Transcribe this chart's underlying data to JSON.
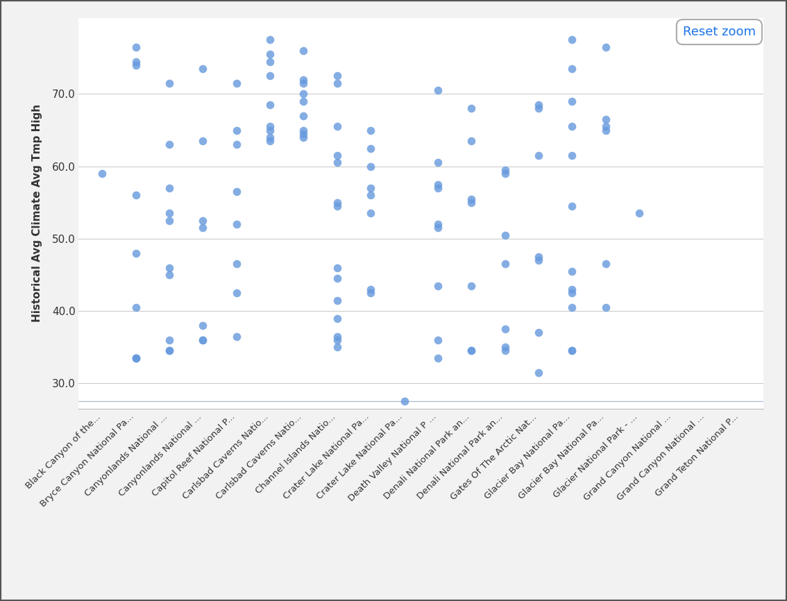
{
  "title": "",
  "ylabel": "Historical Avg Climate Avg Tmp High",
  "xlabel": "",
  "background_color": "#f0f0f0",
  "plot_bg_color": "#ffffff",
  "point_color": "#6699dd",
  "point_size": 70,
  "point_alpha": 0.8,
  "ylim": [
    26.5,
    80.5
  ],
  "yticks": [
    30.0,
    40.0,
    50.0,
    60.0,
    70.0
  ],
  "categories": [
    "Black Canyon of the...",
    "Bryce Canyon National Pa...",
    "Canyonlands National ...",
    "Canyonlands National ...",
    "Capitol Reef National P...",
    "Carlsbad Caverns Natio...",
    "Carlsbad Caverns Natio...",
    "Channel Islands Natio...",
    "Crater Lake National Pa...",
    "Crater Lake National Pa...",
    "Death Valley National P ...",
    "Denali National Park an...",
    "Denali National Park an...",
    "Gates Of The Arctic Nat...",
    "Glacier Bay National Pa...",
    "Glacier Bay National Pa...",
    "Glacier National Park - ...",
    "Grand Canyon National ...",
    "Grand Canyon National ...",
    "Grand Teton National P..."
  ],
  "data_points": [
    [
      0,
      59.0
    ],
    [
      1,
      76.5
    ],
    [
      1,
      74.5
    ],
    [
      1,
      74.0
    ],
    [
      1,
      56.0
    ],
    [
      1,
      48.0
    ],
    [
      1,
      40.5
    ],
    [
      1,
      33.5
    ],
    [
      1,
      33.5
    ],
    [
      1,
      33.5
    ],
    [
      2,
      71.5
    ],
    [
      2,
      63.0
    ],
    [
      2,
      57.0
    ],
    [
      2,
      46.0
    ],
    [
      2,
      45.0
    ],
    [
      2,
      36.0
    ],
    [
      2,
      53.5
    ],
    [
      2,
      52.5
    ],
    [
      2,
      34.5
    ],
    [
      2,
      34.5
    ],
    [
      3,
      73.5
    ],
    [
      3,
      63.5
    ],
    [
      3,
      52.5
    ],
    [
      3,
      51.5
    ],
    [
      3,
      38.0
    ],
    [
      3,
      36.0
    ],
    [
      3,
      36.0
    ],
    [
      4,
      71.5
    ],
    [
      4,
      65.0
    ],
    [
      4,
      63.0
    ],
    [
      4,
      56.5
    ],
    [
      4,
      52.0
    ],
    [
      4,
      46.5
    ],
    [
      4,
      42.5
    ],
    [
      4,
      36.5
    ],
    [
      5,
      77.5
    ],
    [
      5,
      75.5
    ],
    [
      5,
      74.5
    ],
    [
      5,
      72.5
    ],
    [
      5,
      68.5
    ],
    [
      5,
      65.5
    ],
    [
      5,
      65.0
    ],
    [
      5,
      64.0
    ],
    [
      5,
      63.5
    ],
    [
      6,
      76.0
    ],
    [
      6,
      72.0
    ],
    [
      6,
      71.5
    ],
    [
      6,
      70.0
    ],
    [
      6,
      69.0
    ],
    [
      6,
      67.0
    ],
    [
      6,
      65.0
    ],
    [
      6,
      64.5
    ],
    [
      6,
      64.0
    ],
    [
      7,
      72.5
    ],
    [
      7,
      71.5
    ],
    [
      7,
      65.5
    ],
    [
      7,
      61.5
    ],
    [
      7,
      60.5
    ],
    [
      7,
      55.0
    ],
    [
      7,
      54.5
    ],
    [
      7,
      46.0
    ],
    [
      7,
      44.5
    ],
    [
      7,
      41.5
    ],
    [
      7,
      39.0
    ],
    [
      7,
      36.5
    ],
    [
      7,
      36.0
    ],
    [
      7,
      35.0
    ],
    [
      8,
      65.0
    ],
    [
      8,
      62.5
    ],
    [
      8,
      60.0
    ],
    [
      8,
      57.0
    ],
    [
      8,
      56.0
    ],
    [
      8,
      53.5
    ],
    [
      8,
      43.0
    ],
    [
      8,
      42.5
    ],
    [
      9,
      27.5
    ],
    [
      10,
      70.5
    ],
    [
      10,
      60.5
    ],
    [
      10,
      57.5
    ],
    [
      10,
      57.0
    ],
    [
      10,
      52.0
    ],
    [
      10,
      51.5
    ],
    [
      10,
      43.5
    ],
    [
      10,
      36.0
    ],
    [
      10,
      33.5
    ],
    [
      11,
      68.0
    ],
    [
      11,
      63.5
    ],
    [
      11,
      55.5
    ],
    [
      11,
      55.0
    ],
    [
      11,
      43.5
    ],
    [
      11,
      34.5
    ],
    [
      11,
      34.5
    ],
    [
      12,
      59.5
    ],
    [
      12,
      59.0
    ],
    [
      12,
      50.5
    ],
    [
      12,
      46.5
    ],
    [
      12,
      37.5
    ],
    [
      12,
      35.0
    ],
    [
      12,
      34.5
    ],
    [
      13,
      68.5
    ],
    [
      13,
      68.0
    ],
    [
      13,
      61.5
    ],
    [
      13,
      47.5
    ],
    [
      13,
      47.0
    ],
    [
      13,
      37.0
    ],
    [
      13,
      31.5
    ],
    [
      14,
      77.5
    ],
    [
      14,
      73.5
    ],
    [
      14,
      69.0
    ],
    [
      14,
      65.5
    ],
    [
      14,
      61.5
    ],
    [
      14,
      54.5
    ],
    [
      14,
      45.5
    ],
    [
      14,
      43.0
    ],
    [
      14,
      42.5
    ],
    [
      14,
      40.5
    ],
    [
      14,
      34.5
    ],
    [
      14,
      34.5
    ],
    [
      15,
      76.5
    ],
    [
      15,
      66.5
    ],
    [
      15,
      65.5
    ],
    [
      15,
      65.0
    ],
    [
      15,
      46.5
    ],
    [
      15,
      40.5
    ],
    [
      16,
      53.5
    ]
  ]
}
